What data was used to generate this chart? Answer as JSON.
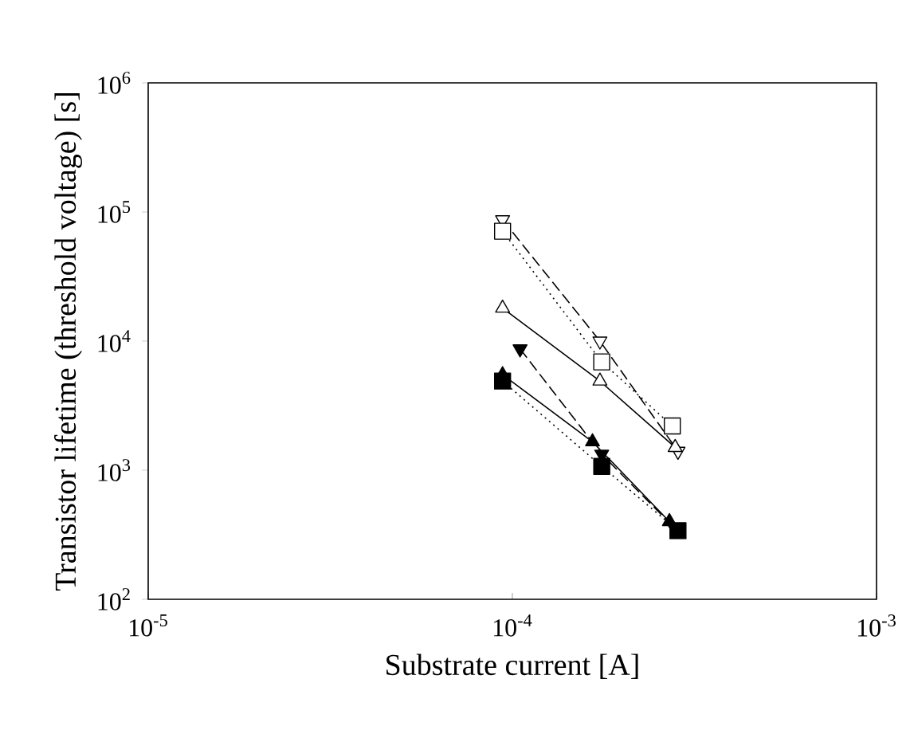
{
  "chart_data": {
    "type": "line",
    "xlabel": "Substrate current [A]",
    "ylabel": "Transistor lifetime (threshold voltage) [s]",
    "log": "xy",
    "xlim": [
      1e-05,
      0.001
    ],
    "ylim": [
      100,
      1000000
    ],
    "xticks": [
      {
        "value": 1e-05,
        "label": "10$^{-5}$"
      },
      {
        "value": 0.0001,
        "label": "10$^{-4}$"
      },
      {
        "value": 0.001,
        "label": "10$^{-3}$"
      }
    ],
    "yticks": [
      {
        "value": 100,
        "label": "10$^{2}$"
      },
      {
        "value": 1000,
        "label": "10$^{3}$"
      },
      {
        "value": 10000,
        "label": "10$^{4}$"
      },
      {
        "value": 100000,
        "label": "10$^{5}$"
      },
      {
        "value": 1000000,
        "label": "10$^{6}$"
      }
    ],
    "series": [
      {
        "x": [
          9.4e-05,
          0.000174,
          0.000285
        ],
        "values": [
          87000,
          10000,
          1400
        ],
        "color": "#000000",
        "marker": "triangle-down-open",
        "line_style": "dashed"
      },
      {
        "x": [
          9.4e-05,
          0.000176,
          0.000275
        ],
        "values": [
          71000,
          6900,
          2200
        ],
        "color": "#000000",
        "marker": "square-open",
        "line_style": "dotted"
      },
      {
        "x": [
          9.4e-05,
          0.000174,
          0.00028
        ],
        "values": [
          18000,
          4900,
          1500
        ],
        "color": "#000000",
        "marker": "triangle-open",
        "line_style": "solid"
      },
      {
        "x": [
          0.000105,
          0.000176,
          0.000278
        ],
        "values": [
          8700,
          1330,
          360
        ],
        "color": "#000000",
        "marker": "triangle-down",
        "line_style": "dashed"
      },
      {
        "x": [
          9.4e-05,
          0.000166,
          0.00027
        ],
        "values": [
          5500,
          1660,
          400
        ],
        "color": "#000000",
        "marker": "triangle",
        "line_style": "solid"
      },
      {
        "x": [
          9.4e-05,
          0.000176,
          0.000285
        ],
        "values": [
          4900,
          1070,
          340
        ],
        "color": "#000000",
        "marker": "square",
        "line_style": "dotted"
      }
    ]
  }
}
